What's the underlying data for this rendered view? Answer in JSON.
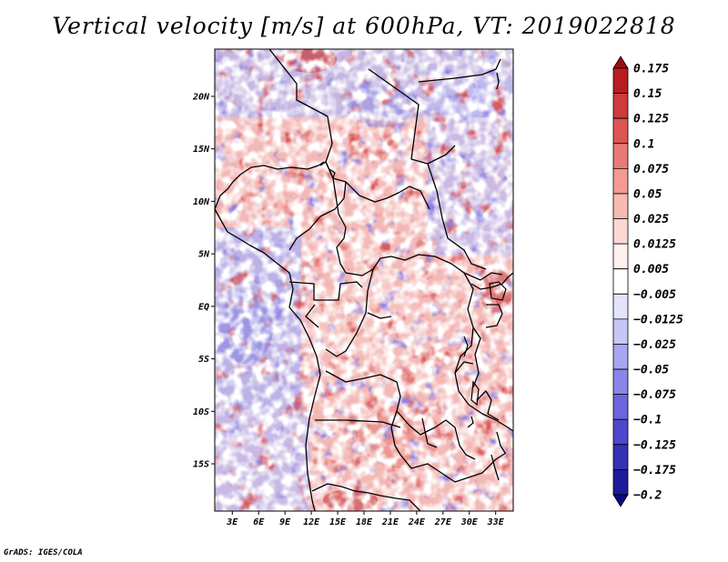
{
  "title": "Vertical velocity [m/s] at 600hPa, VT: 2019022818",
  "credit": "GrADS: IGES/COLA",
  "map": {
    "lat_labels": [
      "20N",
      "15N",
      "10N",
      "5N",
      "EQ",
      "5S",
      "10S",
      "15S"
    ],
    "lat_values": [
      20,
      15,
      10,
      5,
      0,
      -5,
      -10,
      -15
    ],
    "lon_labels": [
      "3E",
      "6E",
      "9E",
      "12E",
      "15E",
      "18E",
      "21E",
      "24E",
      "27E",
      "30E",
      "33E"
    ],
    "lon_values": [
      3,
      6,
      9,
      12,
      15,
      18,
      21,
      24,
      27,
      30,
      33
    ],
    "lon_range": [
      1,
      35
    ],
    "lat_range": [
      -19.5,
      24.5
    ]
  },
  "colorbar": {
    "labels": [
      "0.175",
      "0.15",
      "0.125",
      "0.1",
      "0.075",
      "0.05",
      "0.025",
      "0.0125",
      "0.005",
      "−0.005",
      "−0.0125",
      "−0.025",
      "−0.05",
      "−0.075",
      "−0.1",
      "−0.125",
      "−0.175",
      "−0.2"
    ],
    "colors": [
      "#9e0d14",
      "#b81c23",
      "#cf3a3c",
      "#de5654",
      "#ea7a75",
      "#f39a93",
      "#f8bab3",
      "#fcd8d3",
      "#fff1ef",
      "#ffffff",
      "#e3e3fb",
      "#c7c7f6",
      "#a8a6f0",
      "#8a86e8",
      "#6b66dd",
      "#4c47cc",
      "#3531b5",
      "#1e1a99",
      "#0e0a7e"
    ]
  }
}
